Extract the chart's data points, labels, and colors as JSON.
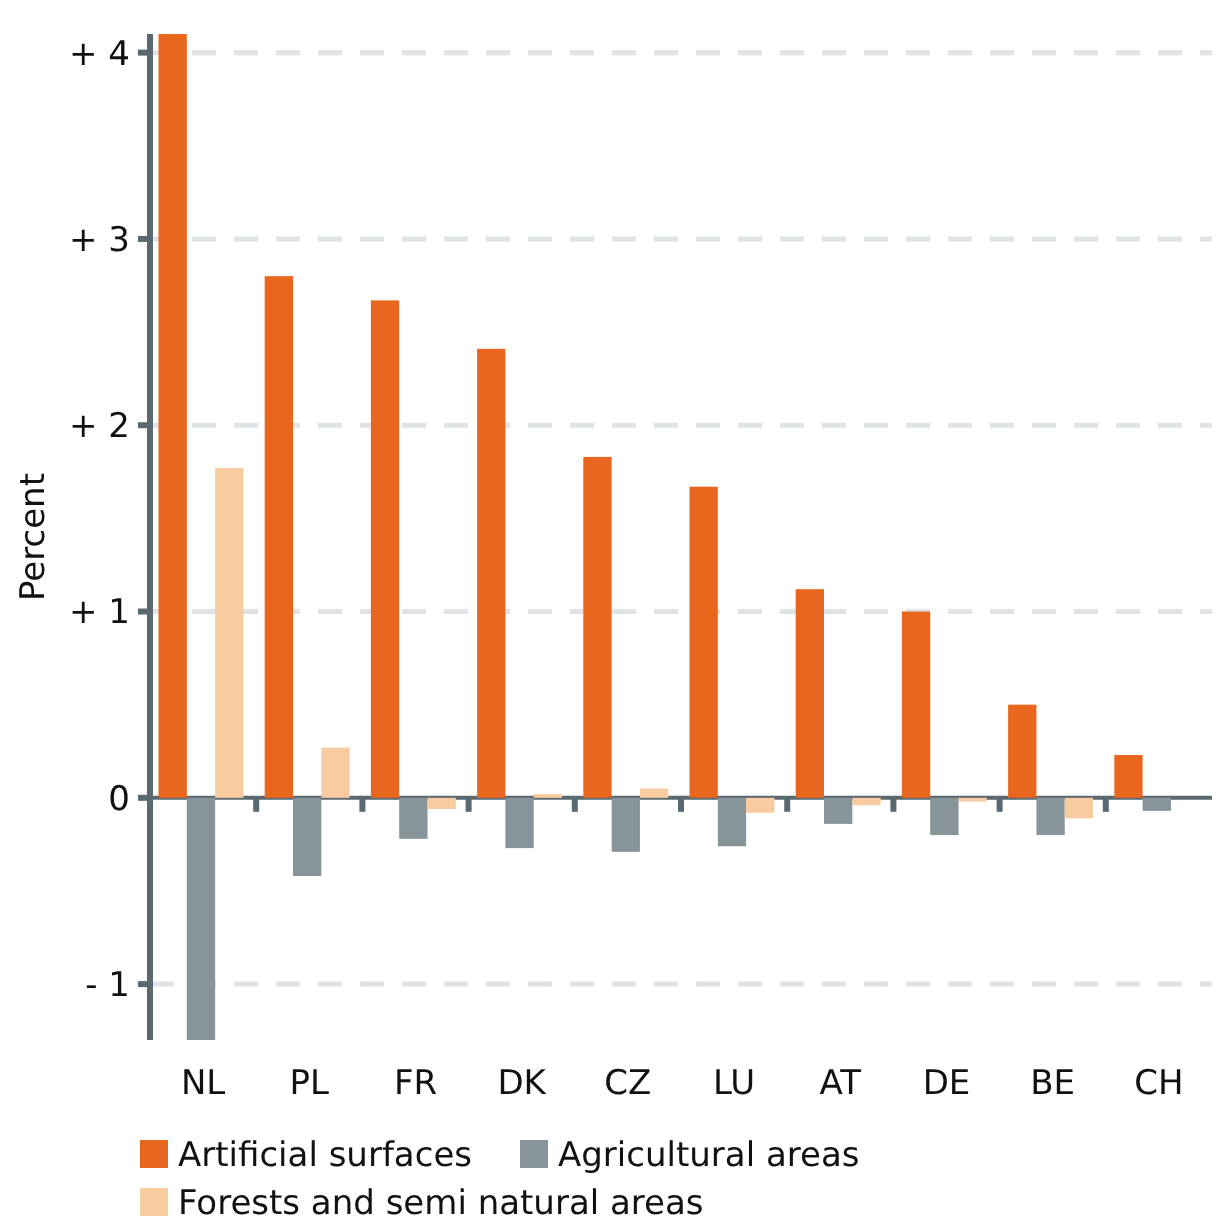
{
  "chart_data": {
    "type": "bar",
    "ylabel": "Percent",
    "categories": [
      "NL",
      "PL",
      "FR",
      "DK",
      "CZ",
      "LU",
      "AT",
      "DE",
      "BE",
      "CH"
    ],
    "series": [
      {
        "name": "Artificial surfaces",
        "color": "#e8661e",
        "values": [
          4.1,
          2.8,
          2.67,
          2.41,
          1.83,
          1.67,
          1.12,
          1.0,
          0.5,
          0.23
        ]
      },
      {
        "name": "Agricultural areas",
        "color": "#87959b",
        "values": [
          -1.3,
          -0.42,
          -0.22,
          -0.27,
          -0.29,
          -0.26,
          -0.14,
          -0.2,
          -0.2,
          -0.07
        ]
      },
      {
        "name": "Forests and semi natural areas",
        "color": "#f9cba0",
        "values": [
          1.77,
          0.27,
          -0.06,
          0.02,
          0.05,
          -0.08,
          -0.04,
          -0.02,
          -0.11,
          0
        ]
      }
    ],
    "ylim": [
      -1.3,
      4.1
    ],
    "yticks": [
      {
        "value": -1,
        "label": "- 1"
      },
      0,
      {
        "value": 1,
        "label": "+ 1"
      },
      {
        "value": 2,
        "label": "+ 2"
      },
      {
        "value": 3,
        "label": "+ 3"
      },
      {
        "value": 4,
        "label": "+ 4"
      }
    ],
    "grid": "y",
    "legend": "bottom"
  }
}
